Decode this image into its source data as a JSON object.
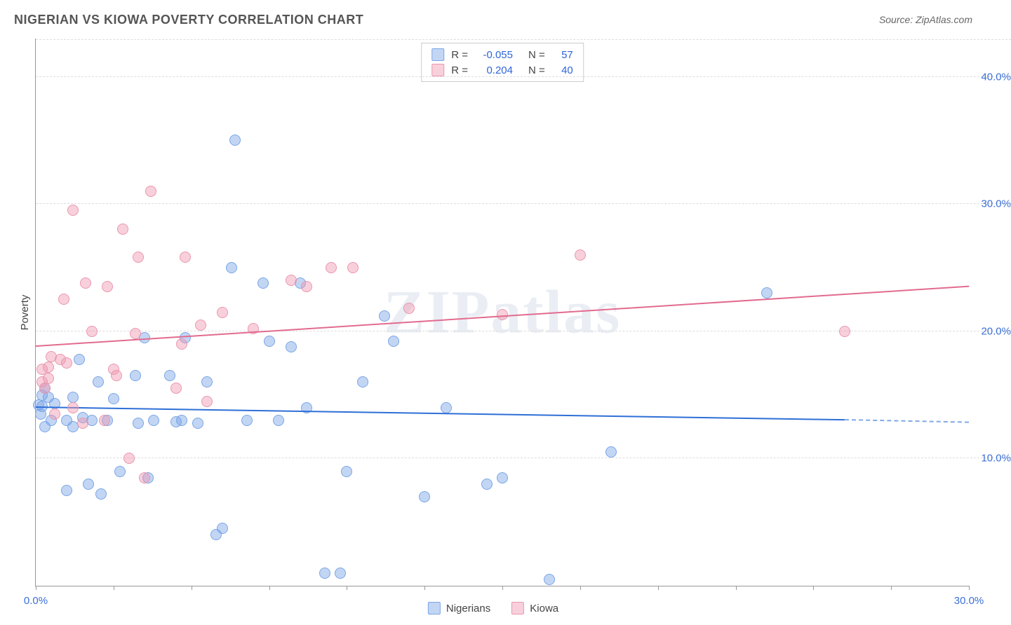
{
  "header": {
    "title": "NIGERIAN VS KIOWA POVERTY CORRELATION CHART",
    "source": "Source: ZipAtlas.com"
  },
  "chart": {
    "type": "scatter",
    "watermark": "ZIPatlas",
    "y_axis": {
      "title": "Poverty",
      "min": 0,
      "max": 43,
      "ticks": [
        10,
        20,
        30,
        40
      ],
      "tick_labels": [
        "10.0%",
        "20.0%",
        "30.0%",
        "40.0%"
      ],
      "grid_color": "#dddddd",
      "label_color": "#3b6fd6",
      "label_fontsize": 15
    },
    "x_axis": {
      "min": 0,
      "max": 30,
      "minor_tick_step": 2.5,
      "tick_labels": {
        "0": "0.0%",
        "30": "30.0%"
      },
      "label_color": "#3b6fd6",
      "label_fontsize": 15
    },
    "series": [
      {
        "name": "Nigerians",
        "legend_label": "Nigerians",
        "R": "-0.055",
        "N": "57",
        "fill_color": "rgba(120,165,230,0.45)",
        "stroke_color": "#7aa5e6",
        "swatch_fill": "rgba(120,165,230,0.45)",
        "swatch_border": "#7aa5e6",
        "trend_color": "#2e6fd6",
        "trend": {
          "x0": 0,
          "y0": 14.0,
          "x1": 26,
          "y1": 13.0,
          "dash_to_x": 30,
          "dash_to_y": 12.8
        },
        "points": [
          [
            0.1,
            14.2
          ],
          [
            0.15,
            13.5
          ],
          [
            0.2,
            15.0
          ],
          [
            0.2,
            14.1
          ],
          [
            0.3,
            12.5
          ],
          [
            0.3,
            15.5
          ],
          [
            0.4,
            14.8
          ],
          [
            0.5,
            13.0
          ],
          [
            0.6,
            14.3
          ],
          [
            1.0,
            13.0
          ],
          [
            1.0,
            7.5
          ],
          [
            1.2,
            12.5
          ],
          [
            1.2,
            14.8
          ],
          [
            1.4,
            17.8
          ],
          [
            1.5,
            13.2
          ],
          [
            1.7,
            8.0
          ],
          [
            1.8,
            13.0
          ],
          [
            2.0,
            16.0
          ],
          [
            2.1,
            7.2
          ],
          [
            2.3,
            13.0
          ],
          [
            2.5,
            14.7
          ],
          [
            2.7,
            9.0
          ],
          [
            3.2,
            16.5
          ],
          [
            3.3,
            12.8
          ],
          [
            3.5,
            19.5
          ],
          [
            3.6,
            8.5
          ],
          [
            3.8,
            13.0
          ],
          [
            4.3,
            16.5
          ],
          [
            4.5,
            12.9
          ],
          [
            4.7,
            13.0
          ],
          [
            4.8,
            19.5
          ],
          [
            5.2,
            12.8
          ],
          [
            5.5,
            16.0
          ],
          [
            5.8,
            4.0
          ],
          [
            6.0,
            4.5
          ],
          [
            6.3,
            25.0
          ],
          [
            6.4,
            35.0
          ],
          [
            6.8,
            13.0
          ],
          [
            7.3,
            23.8
          ],
          [
            7.5,
            19.2
          ],
          [
            7.8,
            13.0
          ],
          [
            8.2,
            18.8
          ],
          [
            8.5,
            23.8
          ],
          [
            8.7,
            14.0
          ],
          [
            9.3,
            1.0
          ],
          [
            9.8,
            1.0
          ],
          [
            10.0,
            9.0
          ],
          [
            10.5,
            16.0
          ],
          [
            11.2,
            21.2
          ],
          [
            11.5,
            19.2
          ],
          [
            12.5,
            7.0
          ],
          [
            13.2,
            14.0
          ],
          [
            14.5,
            8.0
          ],
          [
            15.0,
            8.5
          ],
          [
            16.5,
            0.5
          ],
          [
            18.5,
            10.5
          ],
          [
            23.5,
            23.0
          ]
        ]
      },
      {
        "name": "Kiowa",
        "legend_label": "Kiowa",
        "R": "0.204",
        "N": "40",
        "fill_color": "rgba(240,150,175,0.45)",
        "stroke_color": "#e997ae",
        "swatch_fill": "rgba(240,150,175,0.45)",
        "swatch_border": "#e997ae",
        "trend_color": "#e26b8f",
        "trend": {
          "x0": 0,
          "y0": 18.8,
          "x1": 30,
          "y1": 23.5
        },
        "points": [
          [
            0.2,
            16.0
          ],
          [
            0.2,
            17.0
          ],
          [
            0.3,
            15.5
          ],
          [
            0.4,
            17.2
          ],
          [
            0.4,
            16.3
          ],
          [
            0.5,
            18.0
          ],
          [
            0.6,
            13.5
          ],
          [
            0.8,
            17.8
          ],
          [
            0.9,
            22.5
          ],
          [
            1.0,
            17.5
          ],
          [
            1.2,
            29.5
          ],
          [
            1.2,
            14.0
          ],
          [
            1.5,
            12.8
          ],
          [
            1.6,
            23.8
          ],
          [
            1.8,
            20.0
          ],
          [
            2.2,
            13.0
          ],
          [
            2.3,
            23.5
          ],
          [
            2.5,
            17.0
          ],
          [
            2.6,
            16.5
          ],
          [
            2.8,
            28.0
          ],
          [
            3.0,
            10.0
          ],
          [
            3.2,
            19.8
          ],
          [
            3.3,
            25.8
          ],
          [
            3.5,
            8.5
          ],
          [
            3.7,
            31.0
          ],
          [
            4.5,
            15.5
          ],
          [
            4.7,
            19.0
          ],
          [
            4.8,
            25.8
          ],
          [
            5.3,
            20.5
          ],
          [
            5.5,
            14.5
          ],
          [
            6.0,
            21.5
          ],
          [
            7.0,
            20.2
          ],
          [
            8.2,
            24.0
          ],
          [
            8.7,
            23.5
          ],
          [
            9.5,
            25.0
          ],
          [
            10.2,
            25.0
          ],
          [
            12.0,
            21.8
          ],
          [
            15.0,
            21.3
          ],
          [
            17.5,
            26.0
          ],
          [
            26.0,
            20.0
          ]
        ]
      }
    ],
    "stats_labels": {
      "R": "R =",
      "N": "N ="
    },
    "background_color": "#ffffff"
  }
}
